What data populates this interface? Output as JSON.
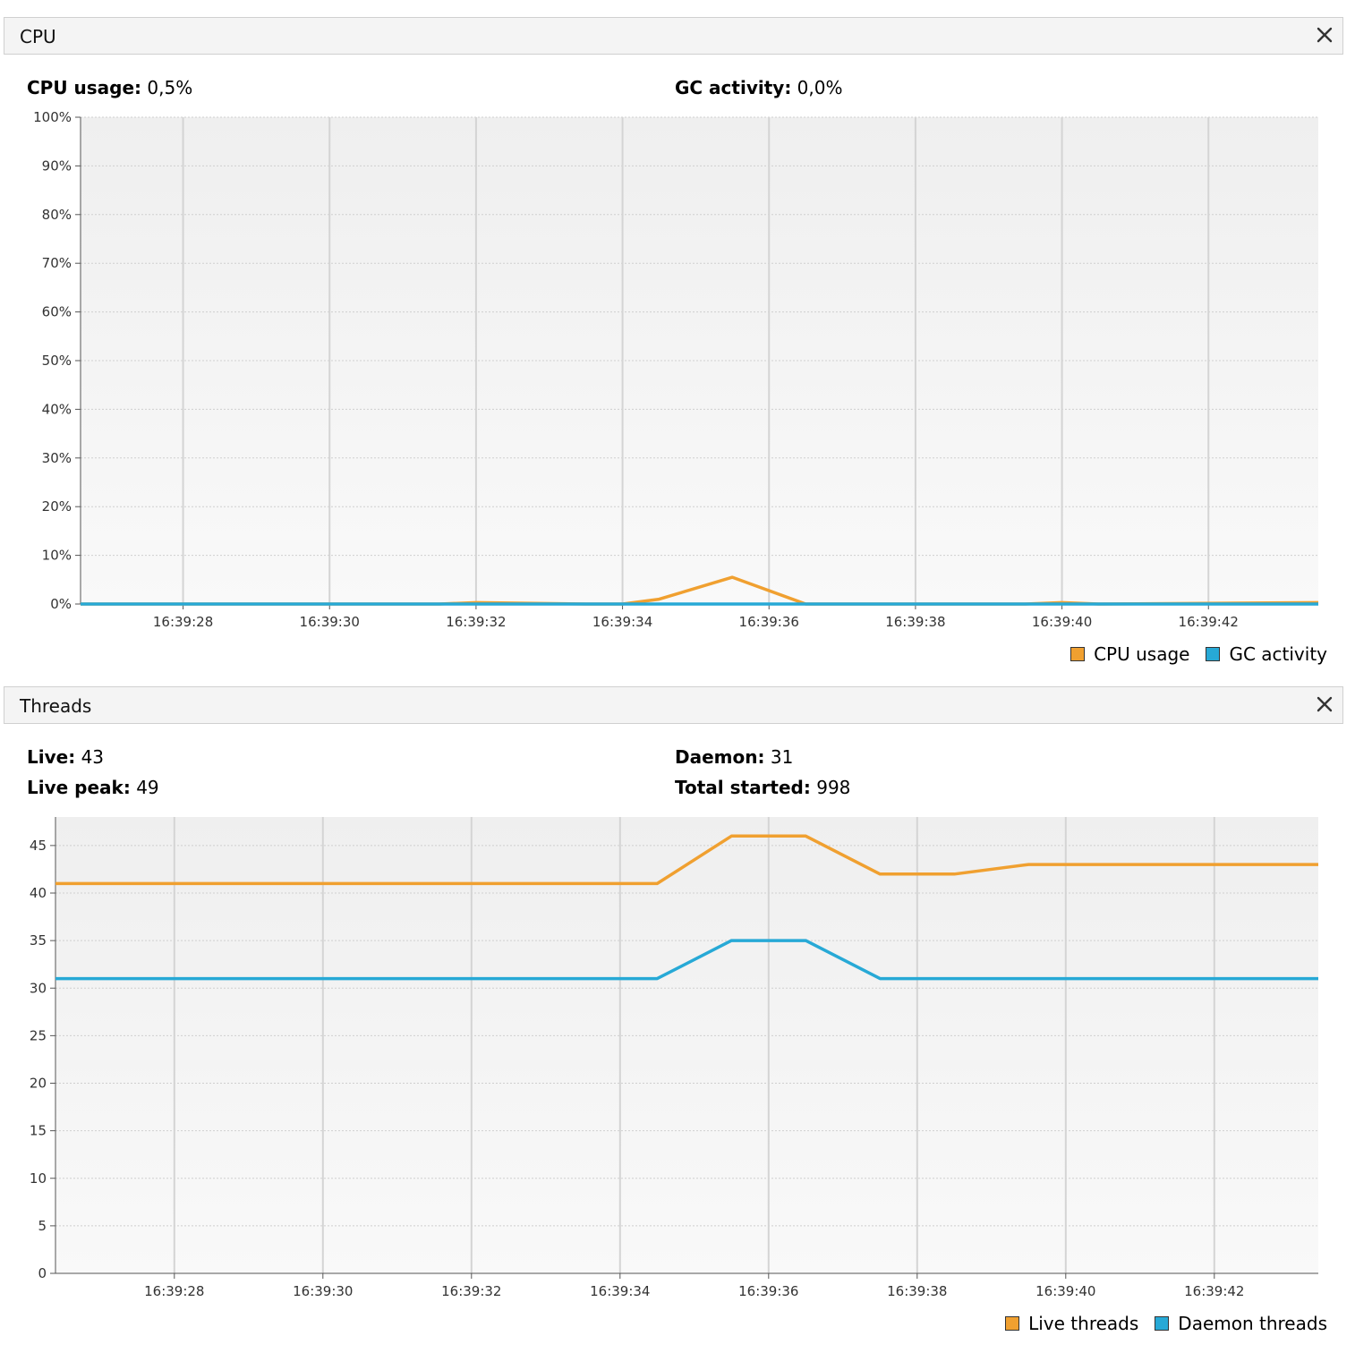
{
  "cpu_panel": {
    "title": "CPU",
    "stats": {
      "cpu_usage_label": "CPU usage:",
      "cpu_usage_value": "0,5%",
      "gc_activity_label": "GC activity:",
      "gc_activity_value": "0,0%"
    },
    "legend": [
      {
        "label": "CPU usage",
        "color": "#f0a030"
      },
      {
        "label": "GC activity",
        "color": "#27a9d6"
      }
    ]
  },
  "threads_panel": {
    "title": "Threads",
    "stats": {
      "live_label": "Live:",
      "live_value": "43",
      "daemon_label": "Daemon:",
      "daemon_value": "31",
      "live_peak_label": "Live peak:",
      "live_peak_value": "49",
      "total_started_label": "Total started:",
      "total_started_value": "998"
    },
    "legend": [
      {
        "label": "Live threads",
        "color": "#f0a030"
      },
      {
        "label": "Daemon threads",
        "color": "#27a9d6"
      }
    ]
  },
  "chart_data": [
    {
      "type": "line",
      "title": "",
      "xlabel": "",
      "ylabel": "",
      "x_ticks": [
        "16:39:28",
        "16:39:30",
        "16:39:32",
        "16:39:34",
        "16:39:36",
        "16:39:38",
        "16:39:40",
        "16:39:42"
      ],
      "y_ticks": [
        "0%",
        "10%",
        "20%",
        "30%",
        "40%",
        "50%",
        "60%",
        "70%",
        "80%",
        "90%",
        "100%"
      ],
      "ylim": [
        0,
        100
      ],
      "xlim": [
        "16:39:26.6",
        "16:39:43.5"
      ],
      "grid": true,
      "legend_position": "bottom-right",
      "series": [
        {
          "name": "CPU usage",
          "color": "#f0a030",
          "x": [
            "16:39:26.6",
            "16:39:31.5",
            "16:39:32.0",
            "16:39:33.5",
            "16:39:34.0",
            "16:39:34.5",
            "16:39:35.5",
            "16:39:36.5",
            "16:39:39.5",
            "16:39:40.0",
            "16:39:40.5",
            "16:39:43.5"
          ],
          "values": [
            0,
            0,
            0.3,
            0,
            0,
            1,
            5.5,
            0,
            0,
            0.3,
            0,
            0.3
          ]
        },
        {
          "name": "GC activity",
          "color": "#27a9d6",
          "x": [
            "16:39:26.6",
            "16:39:43.5"
          ],
          "values": [
            0,
            0
          ]
        }
      ]
    },
    {
      "type": "line",
      "title": "",
      "xlabel": "",
      "ylabel": "",
      "x_ticks": [
        "16:39:28",
        "16:39:30",
        "16:39:32",
        "16:39:34",
        "16:39:36",
        "16:39:38",
        "16:39:40",
        "16:39:42"
      ],
      "y_ticks": [
        "0",
        "5",
        "10",
        "15",
        "20",
        "25",
        "30",
        "35",
        "40",
        "45"
      ],
      "ylim": [
        0,
        48
      ],
      "xlim": [
        "16:39:26.4",
        "16:39:43.4"
      ],
      "grid": true,
      "legend_position": "bottom-right",
      "series": [
        {
          "name": "Live threads",
          "color": "#f0a030",
          "x": [
            "16:39:26.4",
            "16:39:34.5",
            "16:39:35.5",
            "16:39:36.5",
            "16:39:37.5",
            "16:39:38.5",
            "16:39:39.5",
            "16:39:43.4"
          ],
          "values": [
            41,
            41,
            46,
            46,
            42,
            42,
            43,
            43
          ]
        },
        {
          "name": "Daemon threads",
          "color": "#27a9d6",
          "x": [
            "16:39:26.4",
            "16:39:34.5",
            "16:39:35.5",
            "16:39:36.5",
            "16:39:37.5",
            "16:39:43.4"
          ],
          "values": [
            31,
            31,
            35,
            35,
            31,
            31
          ]
        }
      ]
    }
  ]
}
